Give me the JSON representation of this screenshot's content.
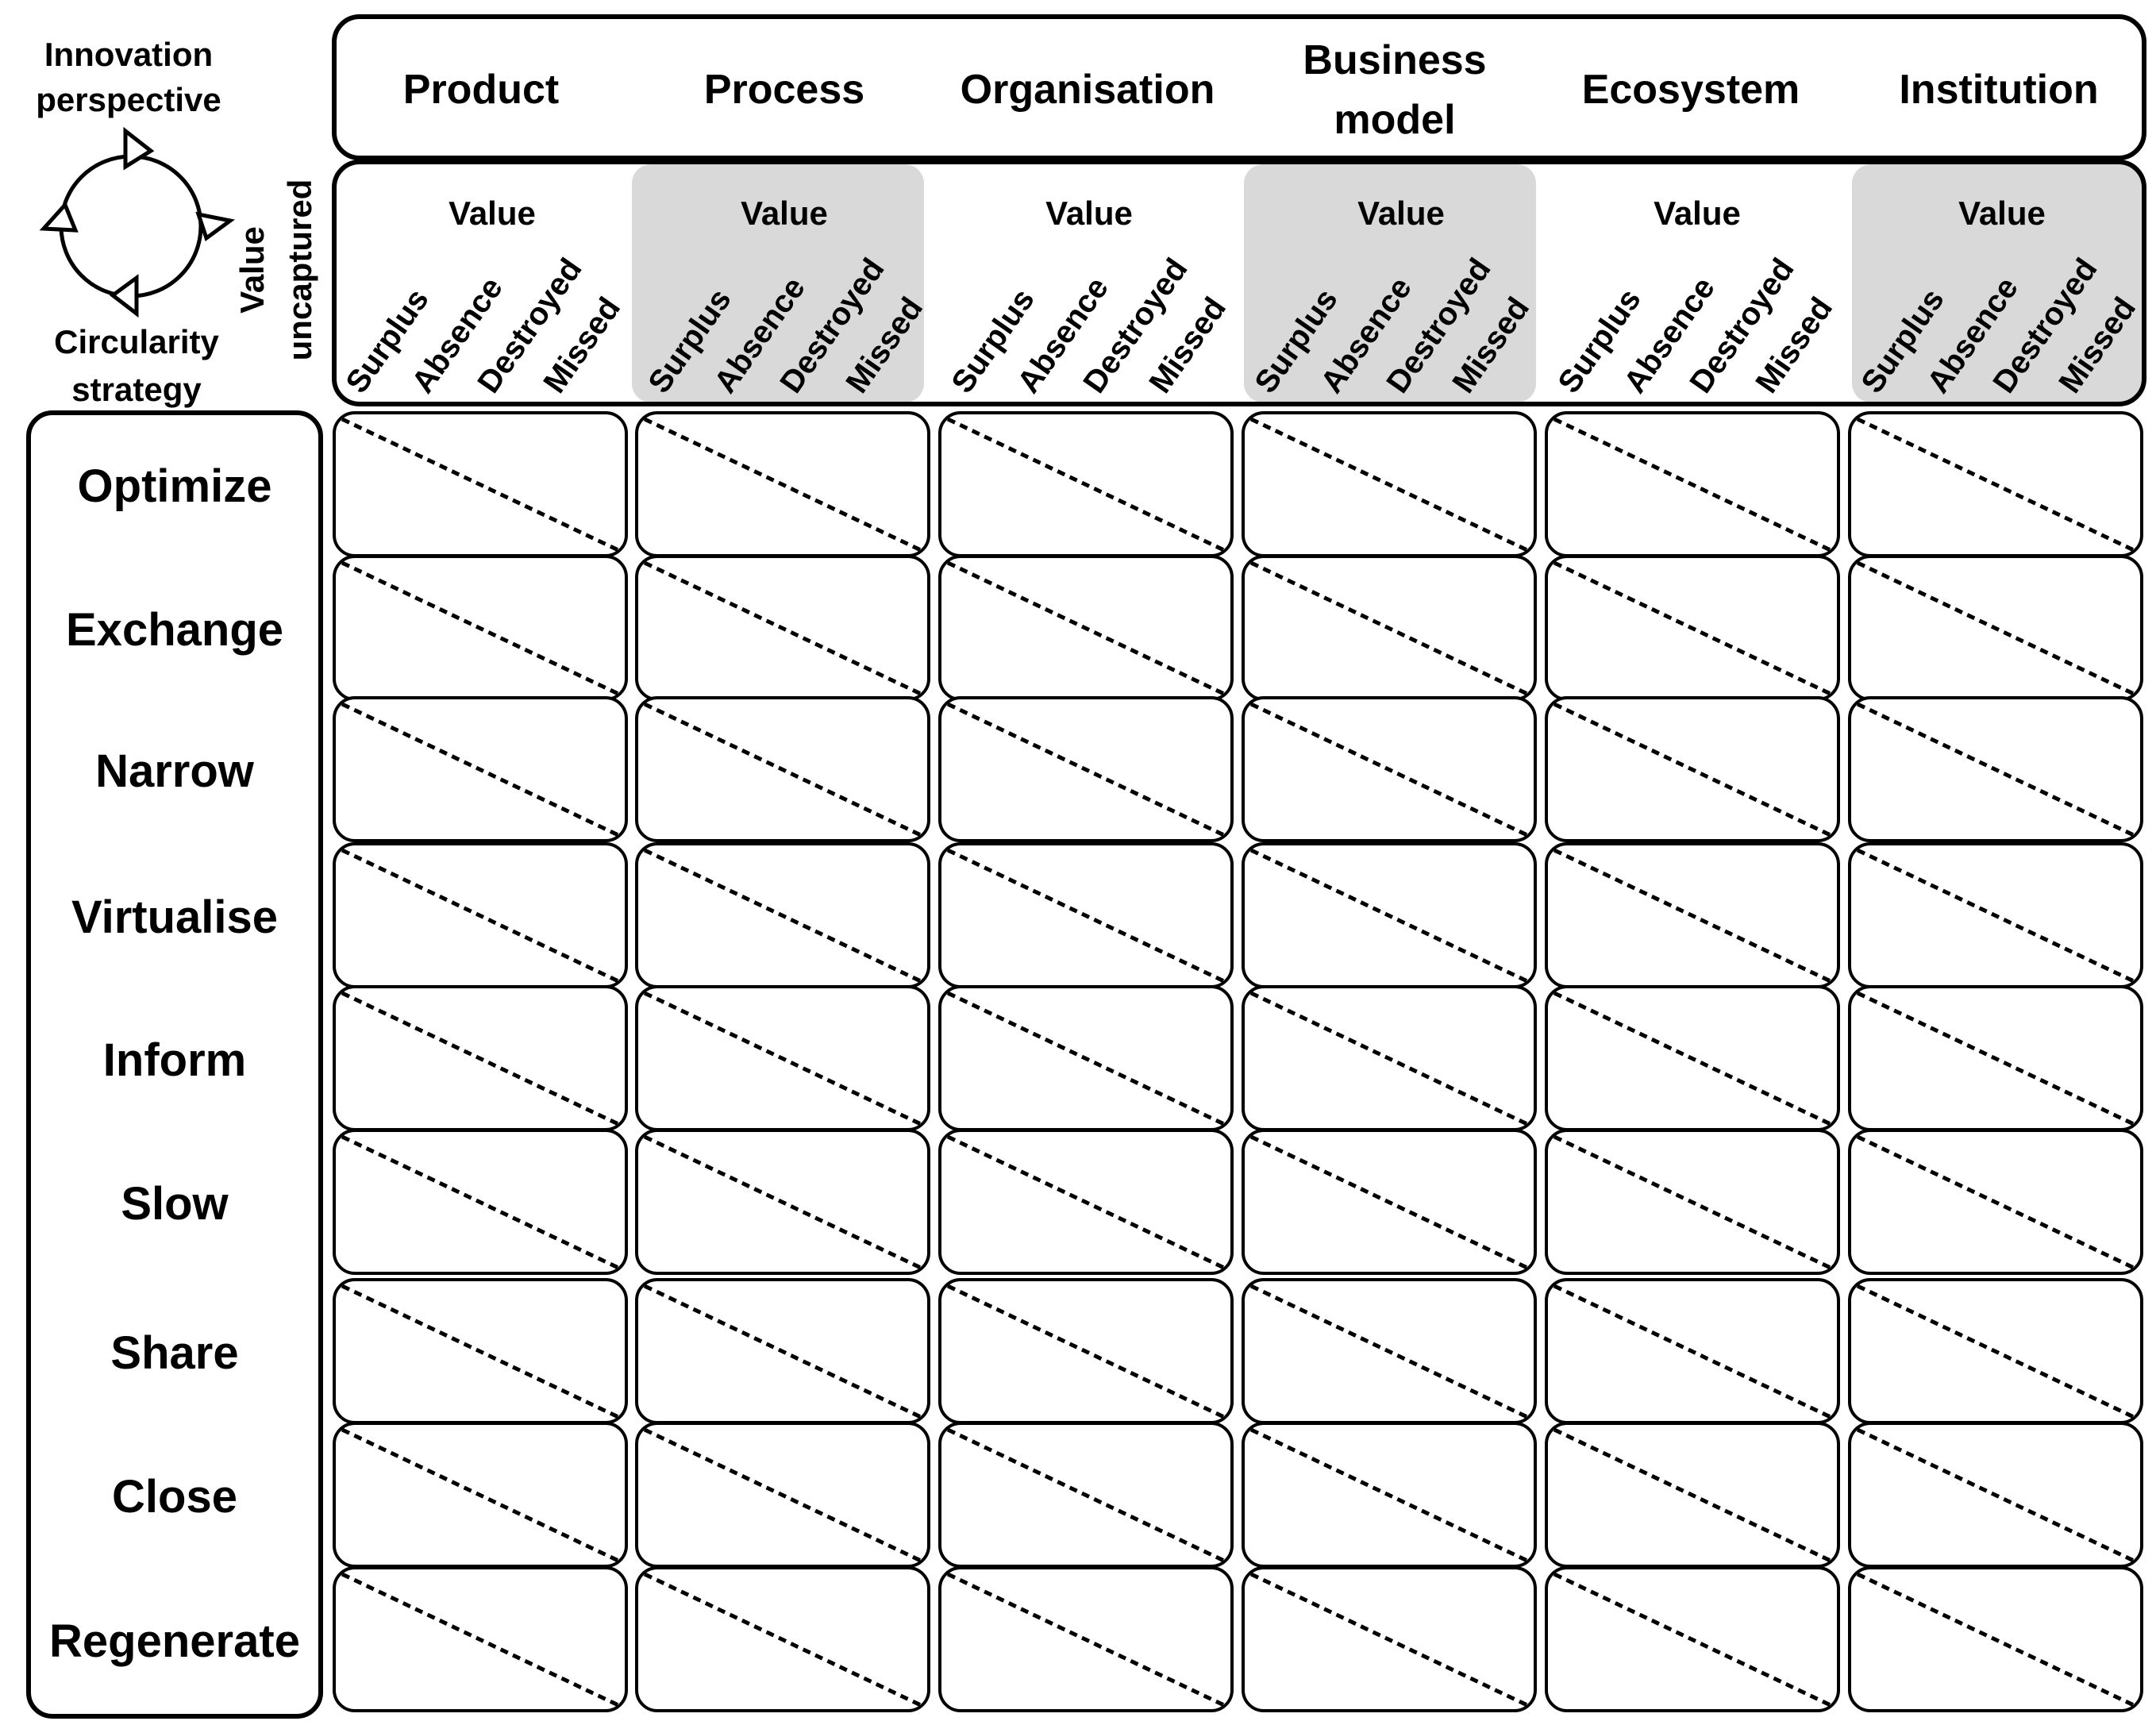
{
  "legend": {
    "top_label_line1": "Innovation",
    "top_label_line2": "perspective",
    "bottom_label_line1": "Circularity",
    "bottom_label_line2": "strategy",
    "icon": "circular-arrows-icon"
  },
  "value_uncaptured_line1": "Value",
  "value_uncaptured_line2": "uncaptured",
  "perspectives": [
    {
      "line1": "Product",
      "line2": "",
      "shaded": false
    },
    {
      "line1": "Process",
      "line2": "",
      "shaded": true
    },
    {
      "line1": "Organisation",
      "line2": "",
      "shaded": false
    },
    {
      "line1": "Business",
      "line2": "model",
      "shaded": true
    },
    {
      "line1": "Ecosystem",
      "line2": "",
      "shaded": false
    },
    {
      "line1": "Institution",
      "line2": "",
      "shaded": true
    }
  ],
  "value_label": "Value",
  "value_types": [
    "Surplus",
    "Absence",
    "Destroyed",
    "Missed"
  ],
  "strategies": [
    "Optimize",
    "Exchange",
    "Narrow",
    "Virtualise",
    "Inform",
    "Slow",
    "Share",
    "Close",
    "Regenerate"
  ],
  "colors": {
    "line": "#000000",
    "shade": "#d9d9d9",
    "background": "#ffffff"
  }
}
